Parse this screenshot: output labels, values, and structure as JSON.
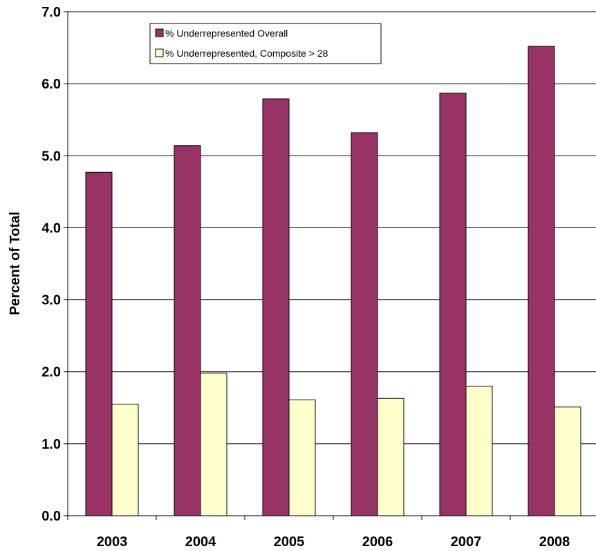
{
  "chart_data": {
    "type": "bar",
    "title": "",
    "xlabel": "",
    "ylabel": "Percent of Total",
    "categories": [
      "2003",
      "2004",
      "2005",
      "2006",
      "2007",
      "2008"
    ],
    "series": [
      {
        "name": "% Underrepresented Overall",
        "values": [
          4.77,
          5.14,
          5.79,
          5.32,
          5.87,
          6.52
        ],
        "color": "#993366"
      },
      {
        "name": "% Underrepresented, Composite > 28",
        "values": [
          1.55,
          1.98,
          1.61,
          1.63,
          1.8,
          1.51
        ],
        "color": "#ffffcc"
      }
    ],
    "ylim": [
      0,
      7
    ],
    "yticks": [
      0,
      1,
      2,
      3,
      4,
      5,
      6,
      7
    ],
    "ytick_labels": [
      "0.0",
      "1.0",
      "2.0",
      "3.0",
      "4.0",
      "5.0",
      "6.0",
      "7.0"
    ],
    "grid": true,
    "legend_position": "top-left"
  }
}
